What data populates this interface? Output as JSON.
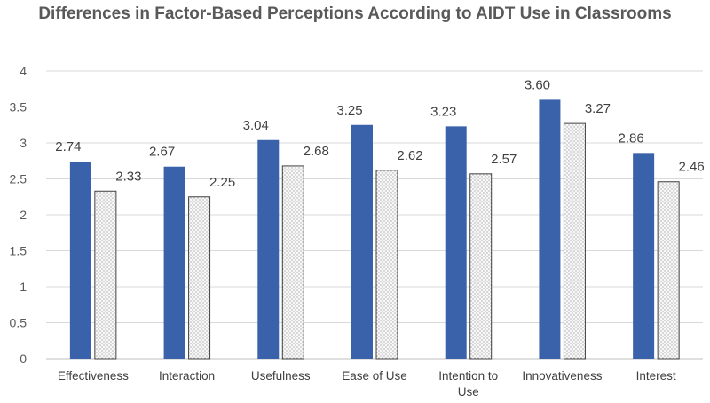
{
  "chart_data": {
    "type": "bar",
    "title": "Differences in Factor-Based Perceptions According to AIDT Use in Classrooms",
    "categories": [
      "Effectiveness",
      "Interaction",
      "Usefulness",
      "Ease of Use",
      "Intention to Use",
      "Innovativeness",
      "Interest"
    ],
    "series": [
      {
        "values": [
          2.74,
          2.67,
          3.04,
          3.25,
          3.23,
          3.6,
          2.86
        ],
        "color": "#3a62aa",
        "fill": "solid"
      },
      {
        "values": [
          2.33,
          2.25,
          2.68,
          2.62,
          2.57,
          3.27,
          2.46
        ],
        "color": "#f4f4f4",
        "fill": "dotted"
      }
    ],
    "data_labels": [
      [
        "2.74",
        "2.67",
        "3.04",
        "3.25",
        "3.23",
        "3.60",
        "2.86"
      ],
      [
        "2.33",
        "2.25",
        "2.68",
        "2.62",
        "2.57",
        "3.27",
        "2.46"
      ]
    ],
    "ylim": [
      0,
      4
    ],
    "yticks": [
      "0",
      "0.5",
      "1",
      "1.5",
      "2",
      "2.5",
      "3",
      "3.5",
      "4"
    ],
    "grid": true,
    "legend": "none"
  }
}
